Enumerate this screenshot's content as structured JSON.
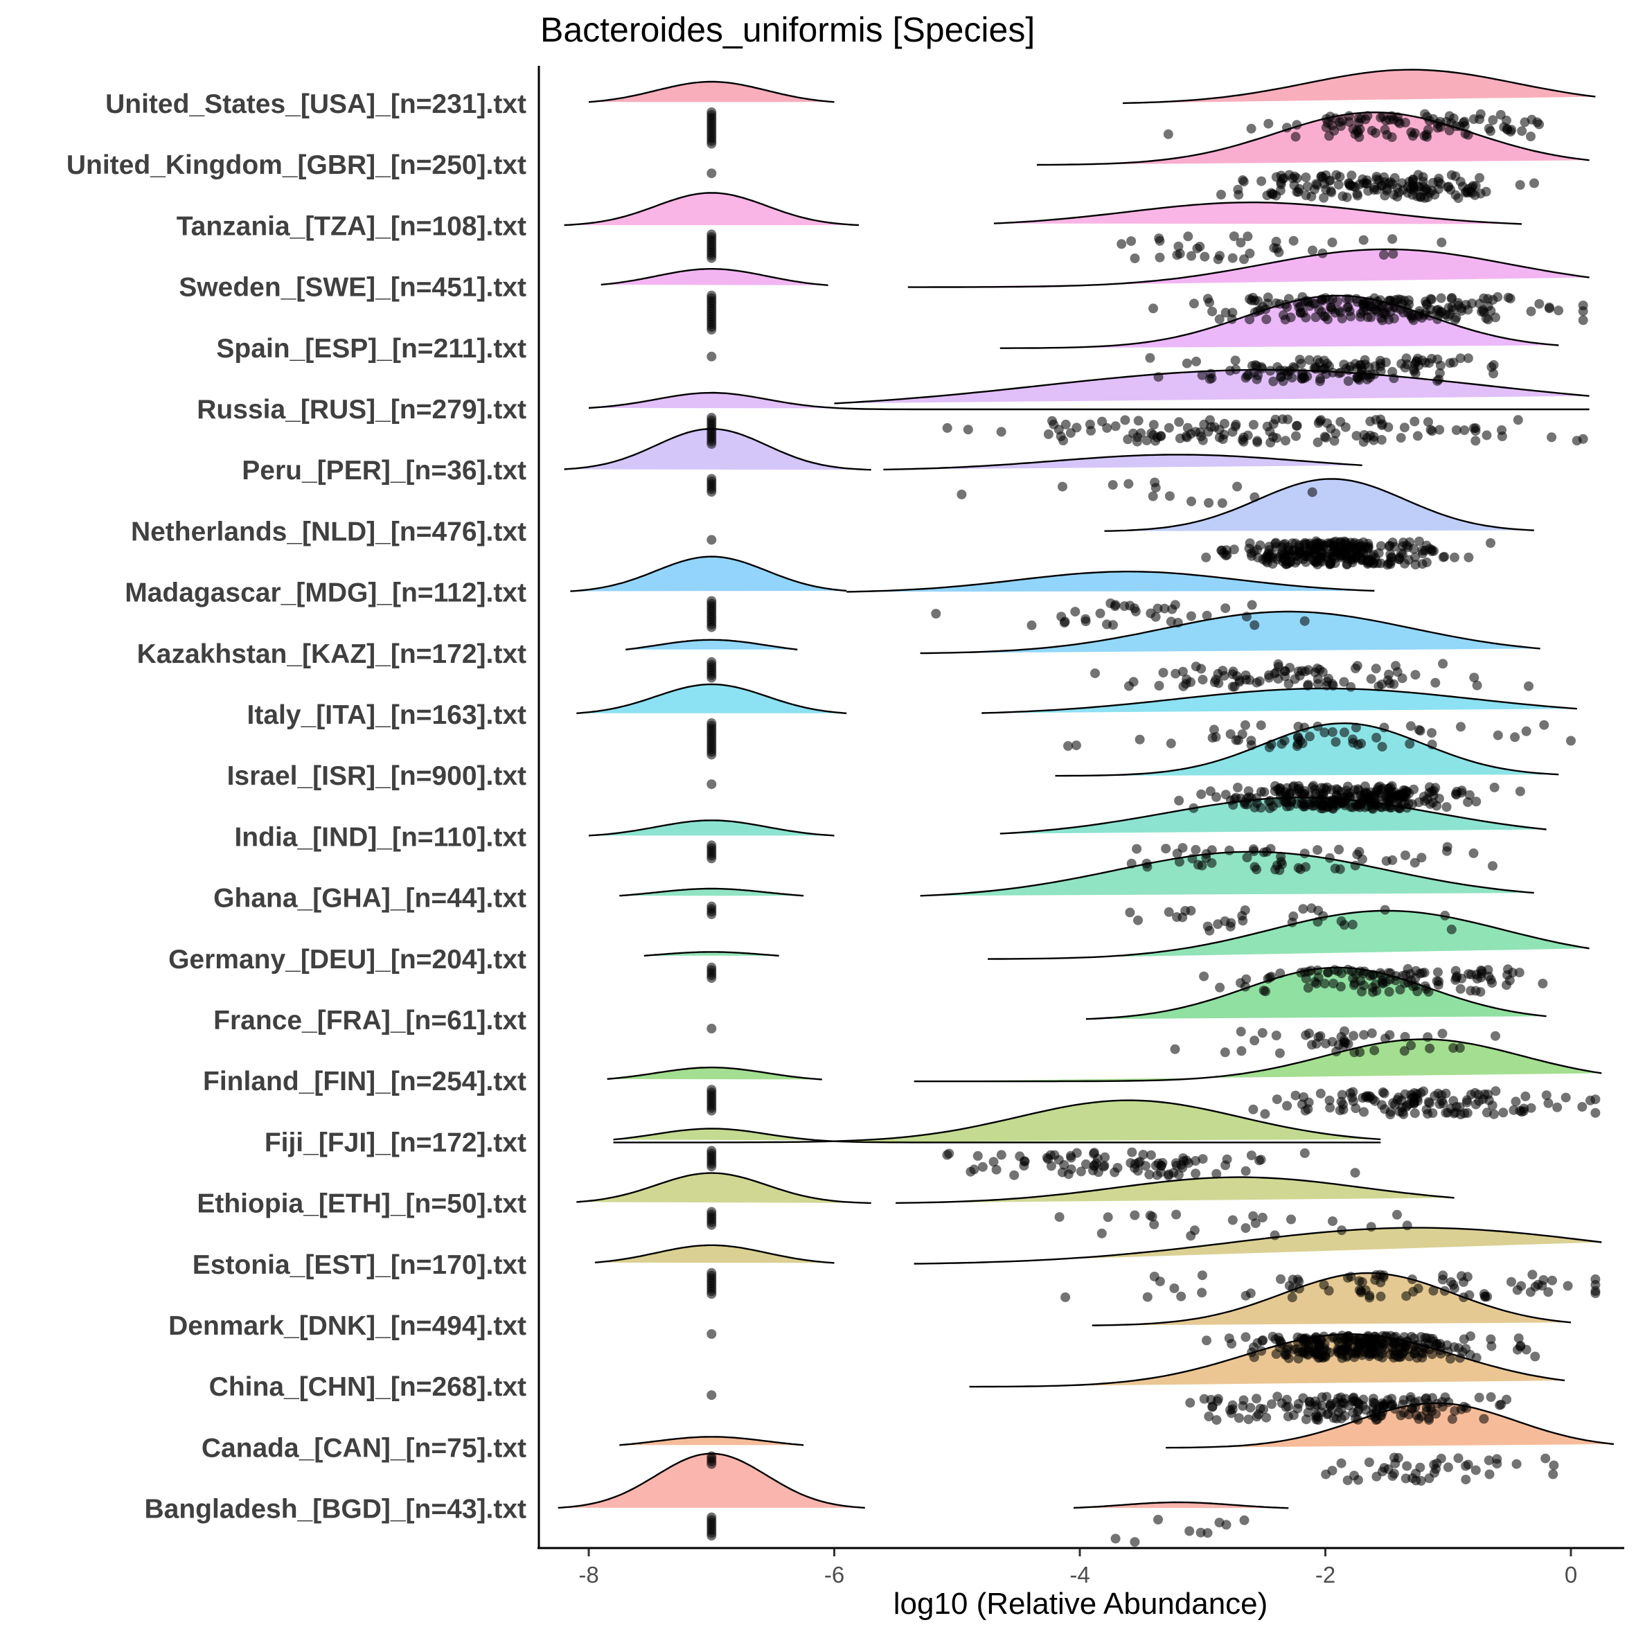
{
  "chart_data": {
    "type": "raincloud",
    "title": "Bacteroides_uniformis [Species]",
    "xlabel": "log10 (Relative Abundance)",
    "ylabel": "",
    "xlim": [
      -8.4,
      0.4
    ],
    "xticks": [
      -8,
      -6,
      -4,
      -2,
      0
    ],
    "xtick_labels": [
      "-8",
      "-6",
      "-4",
      "-2",
      "0"
    ],
    "zero_value": -7,
    "groups": [
      {
        "label": "United_States_[USA]_[n=231].txt",
        "n": 231,
        "color": "#F8A0B0",
        "zero": {
          "share": 0.35,
          "sd": 0.45,
          "range": [
            -8.0,
            -6.0
          ]
        },
        "cloud": {
          "range": [
            -3.65,
            0.2
          ],
          "mode": -1.3,
          "sd": 0.85
        }
      },
      {
        "label": "United_Kingdom_[GBR]_[n=250].txt",
        "n": 250,
        "color": "#F8A0C8",
        "zero": {
          "share": 0.0,
          "sd": 0.45,
          "range": [
            -8.0,
            -6.0
          ]
        },
        "cloud": {
          "range": [
            -4.35,
            0.15
          ],
          "mode": -1.6,
          "sd": 0.8
        }
      },
      {
        "label": "Tanzania_[TZA]_[n=108].txt",
        "n": 108,
        "color": "#F8A8E0",
        "zero": {
          "share": 0.55,
          "sd": 0.45,
          "range": [
            -8.2,
            -5.8
          ]
        },
        "cloud": {
          "range": [
            -4.7,
            -0.4
          ],
          "mode": -2.6,
          "sd": 1.0
        }
      },
      {
        "label": "Sweden_[SWE]_[n=451].txt",
        "n": 451,
        "color": "#F0A8F0",
        "zero": {
          "share": 0.28,
          "sd": 0.45,
          "range": [
            -7.9,
            -6.05
          ]
        },
        "cloud": {
          "range": [
            -5.4,
            0.15
          ],
          "mode": -1.5,
          "sd": 1.0
        }
      },
      {
        "label": "Spain_[ESP]_[n=211].txt",
        "n": 211,
        "color": "#E8ACF8",
        "zero": {
          "share": 0.0,
          "sd": 0.45,
          "range": [
            -8.0,
            -6.0
          ]
        },
        "cloud": {
          "range": [
            -4.65,
            -0.1
          ],
          "mode": -1.9,
          "sd": 0.75
        }
      },
      {
        "label": "Russia_[RUS]_[n=279].txt",
        "n": 279,
        "color": "#DCB4F8",
        "zero": {
          "share": 0.25,
          "sd": 0.45,
          "range": [
            -8.0,
            0.15
          ]
        },
        "cloud": {
          "range": [
            -6.0,
            0.15
          ],
          "mode": -2.5,
          "sd": 1.8
        }
      },
      {
        "label": "Peru_[PER]_[n=36].txt",
        "n": 36,
        "color": "#CCBCF8",
        "zero": {
          "share": 0.7,
          "sd": 0.45,
          "range": [
            -8.2,
            -5.7
          ]
        },
        "cloud": {
          "range": [
            -5.6,
            -1.7
          ],
          "mode": -3.2,
          "sd": 1.0
        }
      },
      {
        "label": "Netherlands_[NLD]_[n=476].txt",
        "n": 476,
        "color": "#B4C4F8",
        "zero": {
          "share": 0.0,
          "sd": 0.45,
          "range": [
            -8.0,
            -6.0
          ]
        },
        "cloud": {
          "range": [
            -3.8,
            -0.3
          ],
          "mode": -1.95,
          "sd": 0.6
        }
      },
      {
        "label": "Madagascar_[MDG]_[n=112].txt",
        "n": 112,
        "color": "#80CCFC",
        "zero": {
          "share": 0.6,
          "sd": 0.45,
          "range": [
            -8.15,
            -5.9
          ]
        },
        "cloud": {
          "range": [
            -5.9,
            -1.6
          ],
          "mode": -3.6,
          "sd": 0.9
        }
      },
      {
        "label": "Kazakhstan_[KAZ]_[n=172].txt",
        "n": 172,
        "color": "#80D0F8",
        "zero": {
          "share": 0.2,
          "sd": 0.45,
          "range": [
            -7.7,
            -6.3
          ]
        },
        "cloud": {
          "range": [
            -5.3,
            -0.25
          ],
          "mode": -2.3,
          "sd": 1.0
        }
      },
      {
        "label": "Italy_[ITA]_[n=163].txt",
        "n": 163,
        "color": "#78DCF0",
        "zero": {
          "share": 0.5,
          "sd": 0.45,
          "range": [
            -8.1,
            -5.9
          ]
        },
        "cloud": {
          "range": [
            -4.8,
            0.05
          ],
          "mode": -2.0,
          "sd": 1.2
        }
      },
      {
        "label": "Israel_[ISR]_[n=900].txt",
        "n": 900,
        "color": "#78DEE0",
        "zero": {
          "share": 0.0,
          "sd": 0.45,
          "range": [
            -8.0,
            -6.0
          ]
        },
        "cloud": {
          "range": [
            -4.2,
            -0.1
          ],
          "mode": -1.85,
          "sd": 0.65
        }
      },
      {
        "label": "India_[IND]_[n=110].txt",
        "n": 110,
        "color": "#78DEC8",
        "zero": {
          "share": 0.25,
          "sd": 0.45,
          "range": [
            -8.0,
            -6.0
          ]
        },
        "cloud": {
          "range": [
            -4.65,
            -0.2
          ],
          "mode": -2.2,
          "sd": 1.1
        }
      },
      {
        "label": "Ghana_[GHA]_[n=44].txt",
        "n": 44,
        "color": "#7CDEB8",
        "zero": {
          "share": 0.12,
          "sd": 0.45,
          "range": [
            -7.75,
            -6.25
          ]
        },
        "cloud": {
          "range": [
            -5.3,
            -0.3
          ],
          "mode": -2.6,
          "sd": 1.1
        }
      },
      {
        "label": "Germany_[DEU]_[n=204].txt",
        "n": 204,
        "color": "#7CDEA8",
        "zero": {
          "share": 0.08,
          "sd": 0.45,
          "range": [
            -7.55,
            -6.45
          ]
        },
        "cloud": {
          "range": [
            -4.75,
            0.15
          ],
          "mode": -1.5,
          "sd": 0.95
        }
      },
      {
        "label": "France_[FRA]_[n=61].txt",
        "n": 61,
        "color": "#7CDA90",
        "zero": {
          "share": 0.0,
          "sd": 0.45,
          "range": [
            -8.0,
            -6.0
          ]
        },
        "cloud": {
          "range": [
            -3.95,
            -0.2
          ],
          "mode": -1.9,
          "sd": 0.75
        }
      },
      {
        "label": "Finland_[FIN]_[n=254].txt",
        "n": 254,
        "color": "#94D87C",
        "zero": {
          "share": 0.2,
          "sd": 0.45,
          "range": [
            -7.85,
            -6.1
          ]
        },
        "cloud": {
          "range": [
            -5.35,
            0.25
          ],
          "mode": -1.2,
          "sd": 0.8
        }
      },
      {
        "label": "Fiji_[FJI]_[n=172].txt",
        "n": 172,
        "color": "#B8D47C",
        "zero": {
          "share": 0.2,
          "sd": 0.45,
          "range": [
            -7.8,
            -1.55
          ]
        },
        "cloud": {
          "range": [
            -7.8,
            -1.55
          ],
          "mode": -3.6,
          "sd": 0.9
        }
      },
      {
        "label": "Ethiopia_[ETH]_[n=50].txt",
        "n": 50,
        "color": "#C8D080",
        "zero": {
          "share": 0.5,
          "sd": 0.45,
          "range": [
            -8.1,
            -5.7
          ]
        },
        "cloud": {
          "range": [
            -5.5,
            -0.95
          ],
          "mode": -2.7,
          "sd": 1.0
        }
      },
      {
        "label": "Estonia_[EST]_[n=170].txt",
        "n": 170,
        "color": "#D4C880",
        "zero": {
          "share": 0.3,
          "sd": 0.45,
          "range": [
            -7.95,
            -6.0
          ]
        },
        "cloud": {
          "range": [
            -5.35,
            0.25
          ],
          "mode": -1.25,
          "sd": 1.5
        }
      },
      {
        "label": "Denmark_[DNK]_[n=494].txt",
        "n": 494,
        "color": "#E0C080",
        "zero": {
          "share": 0.0,
          "sd": 0.45,
          "range": [
            -8.0,
            -6.0
          ]
        },
        "cloud": {
          "range": [
            -3.9,
            0.0
          ],
          "mode": -1.65,
          "sd": 0.7
        }
      },
      {
        "label": "China_[CHN]_[n=268].txt",
        "n": 268,
        "color": "#E8BC80",
        "zero": {
          "share": 0.0,
          "sd": 0.45,
          "range": [
            -8.0,
            -6.0
          ]
        },
        "cloud": {
          "range": [
            -4.9,
            -0.05
          ],
          "mode": -1.8,
          "sd": 0.85
        }
      },
      {
        "label": "Canada_[CAN]_[n=75].txt",
        "n": 75,
        "color": "#F4B088",
        "zero": {
          "share": 0.15,
          "sd": 0.45,
          "range": [
            -7.75,
            -6.25
          ]
        },
        "cloud": {
          "range": [
            -3.3,
            0.35
          ],
          "mode": -1.1,
          "sd": 0.65
        }
      },
      {
        "label": "Bangladesh_[BGD]_[n=43].txt",
        "n": 43,
        "color": "#F8A8A0",
        "zero": {
          "share": 0.95,
          "sd": 0.45,
          "range": [
            -8.25,
            -5.75
          ]
        },
        "cloud": {
          "range": [
            -4.05,
            -2.3
          ],
          "mode": -3.2,
          "sd": 0.45
        }
      }
    ]
  }
}
